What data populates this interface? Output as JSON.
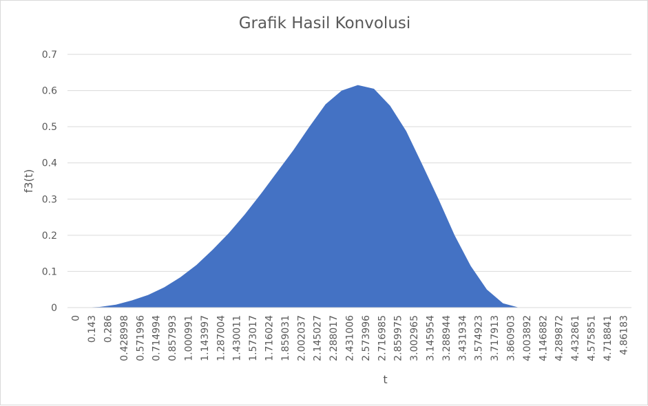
{
  "chart_data": {
    "type": "area",
    "title": "Grafik Hasil Konvolusi",
    "xlabel": "t",
    "ylabel": "f3(t)",
    "ylim": [
      0,
      0.7
    ],
    "y_ticks": [
      "0",
      "0.1",
      "0.2",
      "0.3",
      "0.4",
      "0.5",
      "0.6",
      "0.7"
    ],
    "x_ticks": [
      "0",
      "0.143",
      "0.286",
      "0.428998",
      "0.571996",
      "0.714994",
      "0.857993",
      "1.000991",
      "1.143997",
      "1.287004",
      "1.430011",
      "1.573017",
      "1.716024",
      "1.859031",
      "2.002037",
      "2.145027",
      "2.288017",
      "2.431006",
      "2.573996",
      "2.716985",
      "2.859975",
      "3.002965",
      "3.145954",
      "3.288944",
      "3.431934",
      "3.574923",
      "3.717913",
      "3.860903",
      "4.003892",
      "4.146882",
      "4.289872",
      "4.432861",
      "4.575851",
      "4.718841",
      "4.86183"
    ],
    "grid": "horizontal",
    "color": "#4472c4",
    "series": [
      {
        "x": [
          0,
          0.143,
          0.286,
          0.428998,
          0.571996,
          0.714994,
          0.857993,
          1.000991,
          1.143997,
          1.287004,
          1.430011,
          1.573017,
          1.716024,
          1.859031,
          2.002037,
          2.145027,
          2.288017,
          2.431006,
          2.573996,
          2.716985,
          2.859975,
          3.002965,
          3.145954,
          3.288944,
          3.431934,
          3.574923,
          3.717913,
          3.860903,
          4.003892,
          4.146882,
          4.289872,
          4.432861,
          4.575851,
          4.718841,
          4.86183,
          5.0
        ],
        "values": [
          0,
          0,
          0.002,
          0.008,
          0.02,
          0.035,
          0.056,
          0.084,
          0.118,
          0.16,
          0.206,
          0.258,
          0.315,
          0.375,
          0.435,
          0.5,
          0.562,
          0.6,
          0.615,
          0.605,
          0.558,
          0.488,
          0.395,
          0.3,
          0.2,
          0.115,
          0.05,
          0.012,
          0,
          0,
          0,
          0,
          0,
          0,
          0,
          0
        ]
      }
    ]
  }
}
